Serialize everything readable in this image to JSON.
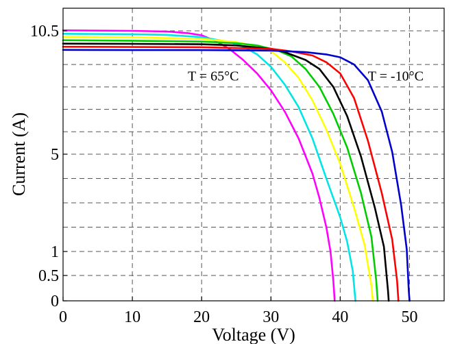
{
  "chart_data": {
    "type": "line",
    "title": "",
    "xlabel": "Voltage  (V)",
    "ylabel": "Current (A)",
    "xlim": [
      0,
      55
    ],
    "ylim": [
      0,
      11
    ],
    "x_ticks": [
      {
        "value": 0,
        "label": "0"
      },
      {
        "value": 10,
        "label": "10"
      },
      {
        "value": 20,
        "label": "20"
      },
      {
        "value": 30,
        "label": "30"
      },
      {
        "value": 40,
        "label": "40"
      },
      {
        "value": 50,
        "label": "50"
      }
    ],
    "y_ticks": [
      {
        "value": 0,
        "label": "0"
      },
      {
        "value": 0.5,
        "label": "0.5"
      },
      {
        "value": 1,
        "label": "1"
      },
      {
        "value": 5,
        "label": "5"
      },
      {
        "value": 10.5,
        "label": "10.5"
      }
    ],
    "y_grid": [
      0.5,
      1,
      2,
      3,
      4,
      5,
      6,
      7,
      8,
      9,
      10.5
    ],
    "x_grid": [
      0,
      10,
      20,
      30,
      40,
      50
    ],
    "grid": true,
    "annotations": [
      {
        "text": "T = 65°C",
        "x": 18,
        "y": 8.5
      },
      {
        "text": "T = -10°C",
        "x": 44,
        "y": 8.5
      }
    ],
    "series": [
      {
        "color": "#ff00ff",
        "points": [
          [
            0,
            10.52
          ],
          [
            10,
            10.5
          ],
          [
            15,
            10.47
          ],
          [
            18,
            10.4
          ],
          [
            20,
            10.3
          ],
          [
            22,
            10.05
          ],
          [
            24,
            9.7
          ],
          [
            26,
            9.2
          ],
          [
            28,
            8.6
          ],
          [
            30,
            7.85
          ],
          [
            32,
            6.9
          ],
          [
            34,
            5.7
          ],
          [
            36,
            4.2
          ],
          [
            37,
            3.2
          ],
          [
            38,
            2.0
          ],
          [
            38.6,
            1.0
          ],
          [
            39,
            0.4
          ],
          [
            39.2,
            0
          ]
        ]
      },
      {
        "color": "#00e5e5",
        "points": [
          [
            0,
            10.37
          ],
          [
            10,
            10.35
          ],
          [
            15,
            10.32
          ],
          [
            20,
            10.22
          ],
          [
            24,
            10.0
          ],
          [
            26,
            9.8
          ],
          [
            28,
            9.45
          ],
          [
            30,
            8.9
          ],
          [
            32,
            8.1
          ],
          [
            34,
            7.1
          ],
          [
            36,
            5.7
          ],
          [
            38,
            4.0
          ],
          [
            40,
            2.4
          ],
          [
            41,
            1.4
          ],
          [
            41.8,
            0.6
          ],
          [
            42.2,
            0
          ]
        ]
      },
      {
        "color": "#ffff00",
        "points": [
          [
            0,
            10.23
          ],
          [
            10,
            10.21
          ],
          [
            20,
            10.14
          ],
          [
            25,
            10.0
          ],
          [
            28,
            9.8
          ],
          [
            30,
            9.6
          ],
          [
            32,
            9.1
          ],
          [
            34,
            8.4
          ],
          [
            36,
            7.4
          ],
          [
            38,
            6.1
          ],
          [
            40,
            4.6
          ],
          [
            42,
            2.8
          ],
          [
            43.5,
            1.3
          ],
          [
            44.5,
            0.3
          ],
          [
            44.7,
            0
          ]
        ]
      },
      {
        "color": "#00cc00",
        "points": [
          [
            0,
            10.08
          ],
          [
            10,
            10.06
          ],
          [
            20,
            10.02
          ],
          [
            25,
            9.95
          ],
          [
            28,
            9.85
          ],
          [
            31,
            9.62
          ],
          [
            33,
            9.35
          ],
          [
            35,
            8.8
          ],
          [
            37,
            8.0
          ],
          [
            39,
            6.8
          ],
          [
            41,
            5.3
          ],
          [
            43,
            3.4
          ],
          [
            44.5,
            1.6
          ],
          [
            45.2,
            0.4
          ],
          [
            45.4,
            0
          ]
        ]
      },
      {
        "color": "#000000",
        "points": [
          [
            0,
            9.93
          ],
          [
            10,
            9.92
          ],
          [
            20,
            9.9
          ],
          [
            25,
            9.85
          ],
          [
            30,
            9.7
          ],
          [
            32,
            9.55
          ],
          [
            35,
            9.2
          ],
          [
            37,
            8.8
          ],
          [
            39,
            8.0
          ],
          [
            41,
            6.7
          ],
          [
            43,
            4.9
          ],
          [
            45,
            2.8
          ],
          [
            46.3,
            1.2
          ],
          [
            46.9,
            0.2
          ],
          [
            47,
            0
          ]
        ]
      },
      {
        "color": "#ff0000",
        "points": [
          [
            0,
            9.79
          ],
          [
            10,
            9.78
          ],
          [
            20,
            9.77
          ],
          [
            30,
            9.7
          ],
          [
            33,
            9.58
          ],
          [
            36,
            9.4
          ],
          [
            38,
            9.1
          ],
          [
            40,
            8.6
          ],
          [
            42,
            7.5
          ],
          [
            44,
            5.6
          ],
          [
            46,
            3.4
          ],
          [
            47.5,
            1.5
          ],
          [
            48.2,
            0.4
          ],
          [
            48.4,
            0
          ]
        ]
      },
      {
        "color": "#0000cc",
        "points": [
          [
            0,
            9.65
          ],
          [
            10,
            9.64
          ],
          [
            20,
            9.64
          ],
          [
            30,
            9.62
          ],
          [
            35,
            9.55
          ],
          [
            38,
            9.45
          ],
          [
            40,
            9.32
          ],
          [
            42,
            9.0
          ],
          [
            44,
            8.3
          ],
          [
            46,
            6.9
          ],
          [
            47.5,
            5.1
          ],
          [
            48.8,
            2.9
          ],
          [
            49.6,
            1.1
          ],
          [
            49.9,
            0.2
          ],
          [
            50,
            0
          ]
        ]
      }
    ]
  }
}
